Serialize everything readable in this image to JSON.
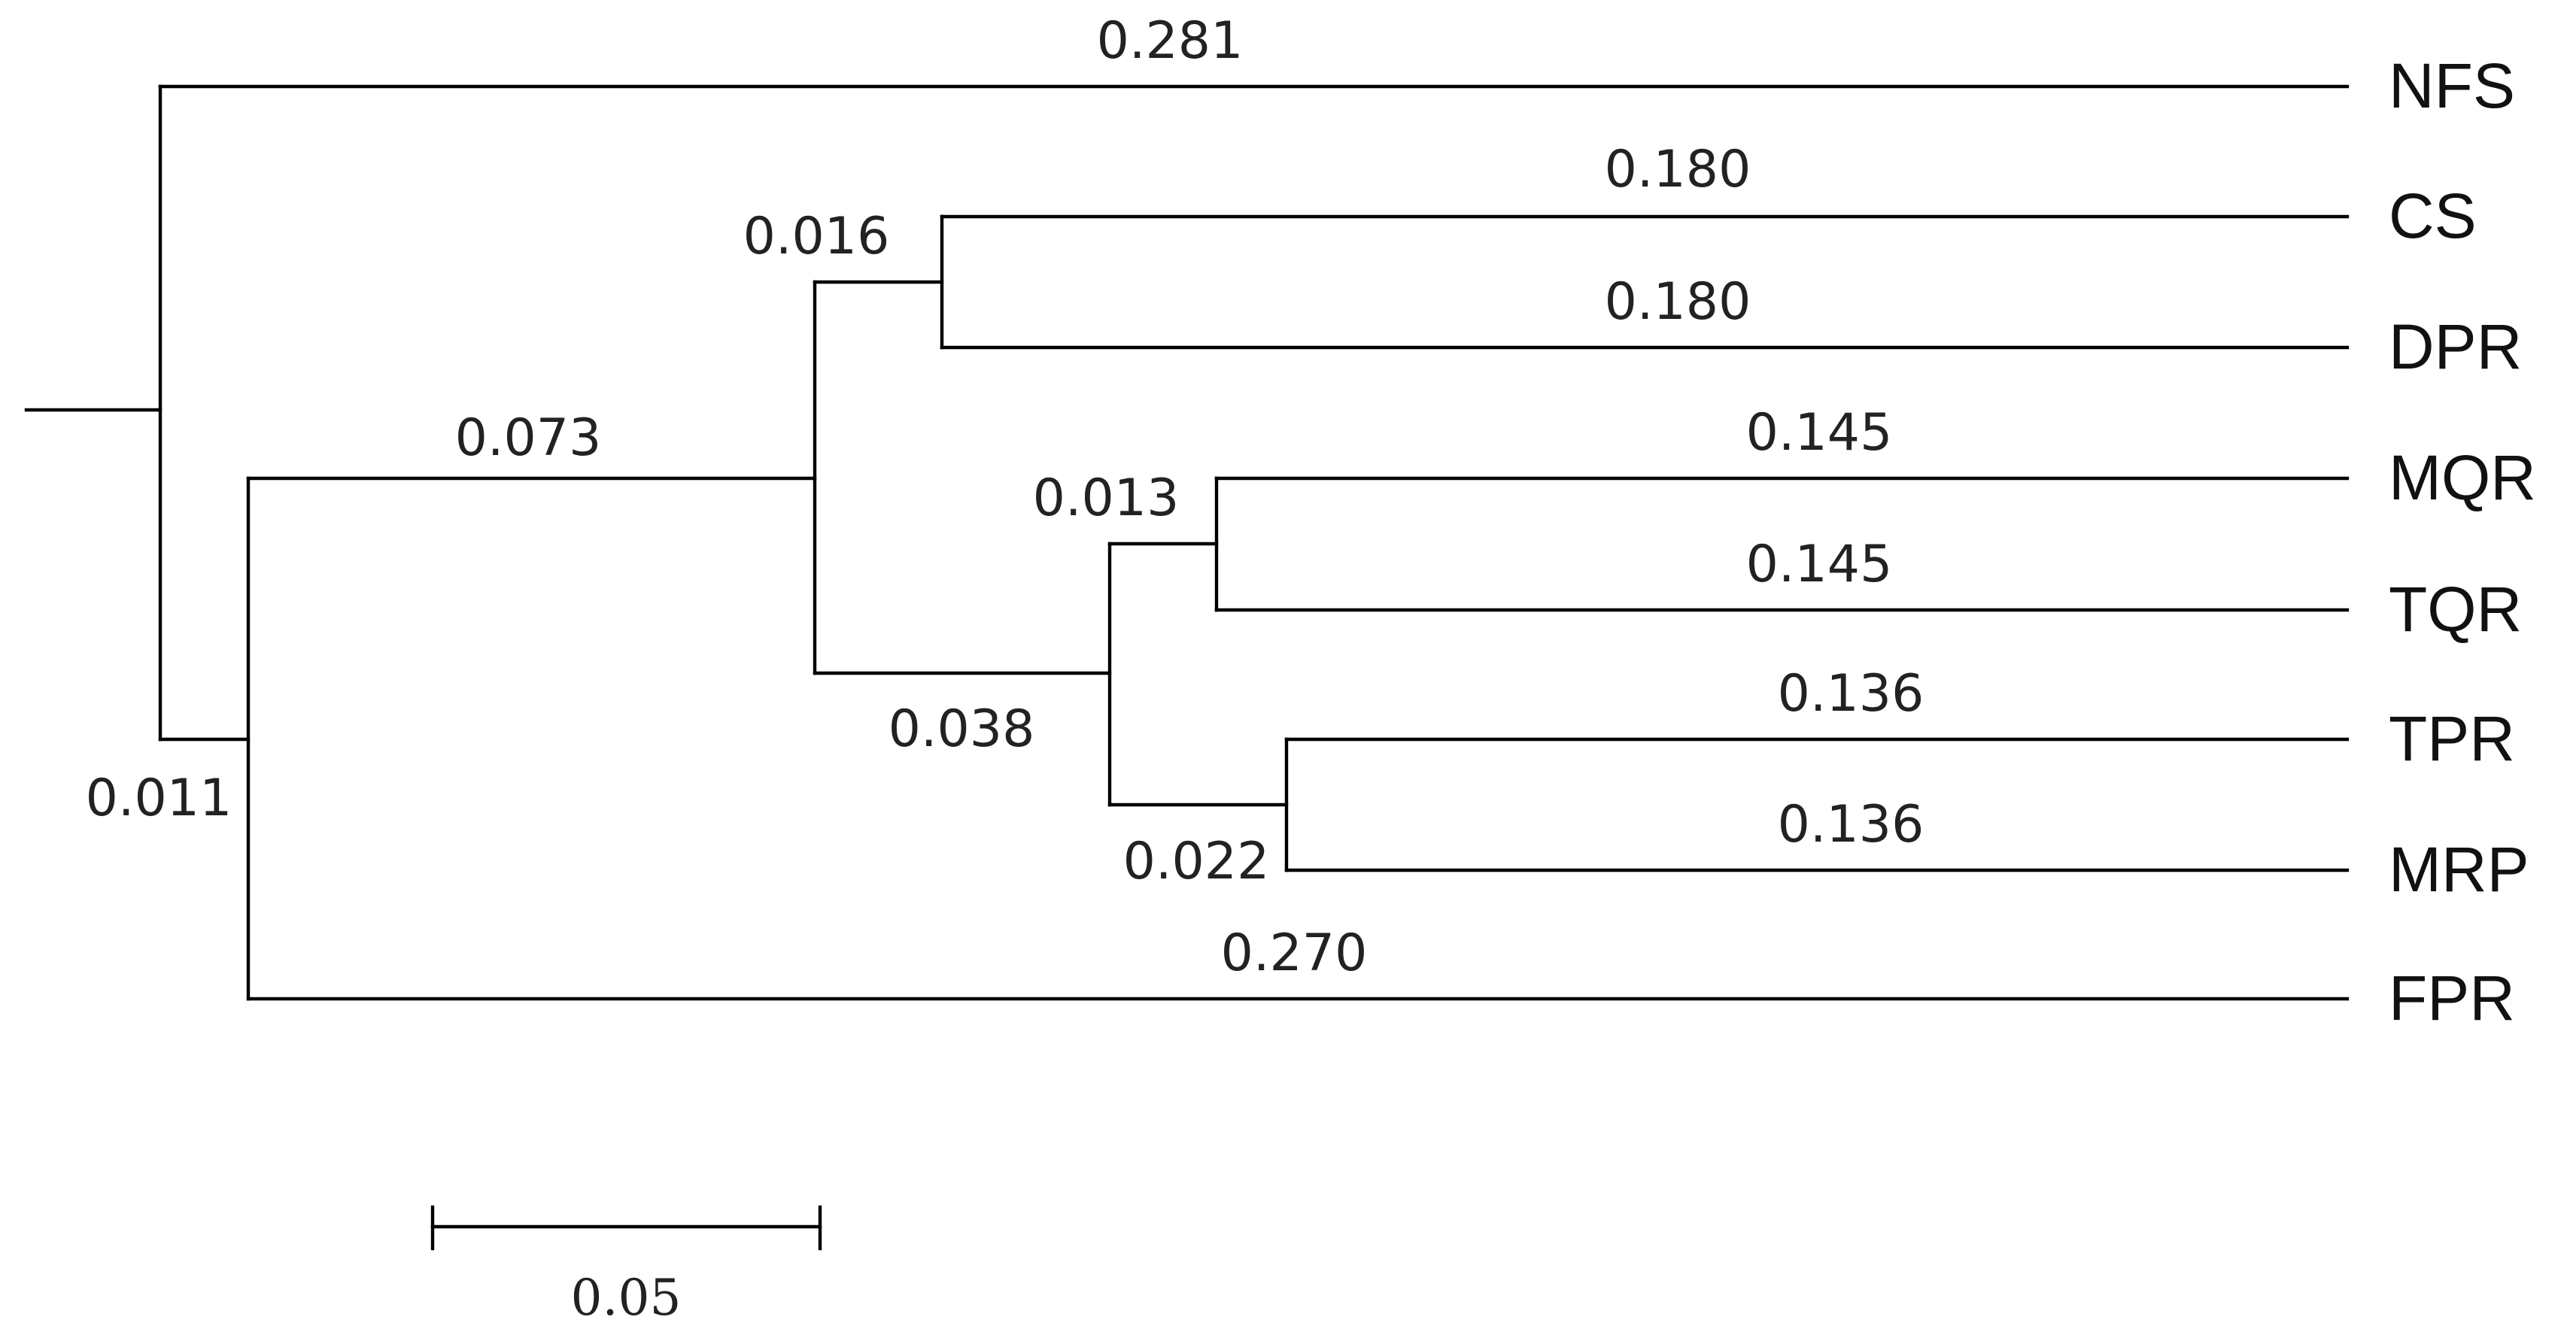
{
  "tree": {
    "taxa": [
      "NFS",
      "CS",
      "DPR",
      "MQR",
      "TQR",
      "TPR",
      "MRP",
      "FPR"
    ],
    "topology": {
      "children": [
        {
          "name": "NFS",
          "length": "0.281"
        },
        {
          "length": "0.011",
          "children": [
            {
              "length": "0.073",
              "children": [
                {
                  "length": "0.016",
                  "children": [
                    {
                      "name": "CS",
                      "length": "0.180"
                    },
                    {
                      "name": "DPR",
                      "length": "0.180"
                    }
                  ]
                },
                {
                  "length": "0.038",
                  "children": [
                    {
                      "length": "0.013",
                      "children": [
                        {
                          "name": "MQR",
                          "length": "0.145"
                        },
                        {
                          "name": "TQR",
                          "length": "0.145"
                        }
                      ]
                    },
                    {
                      "length": "0.022",
                      "children": [
                        {
                          "name": "TPR",
                          "length": "0.136"
                        },
                        {
                          "name": "MRP",
                          "length": "0.136"
                        }
                      ]
                    }
                  ]
                }
              ]
            },
            {
              "name": "FPR",
              "length": "0.270"
            }
          ]
        }
      ]
    }
  },
  "scale_bar": {
    "value": 0.05,
    "label": "0.05"
  }
}
